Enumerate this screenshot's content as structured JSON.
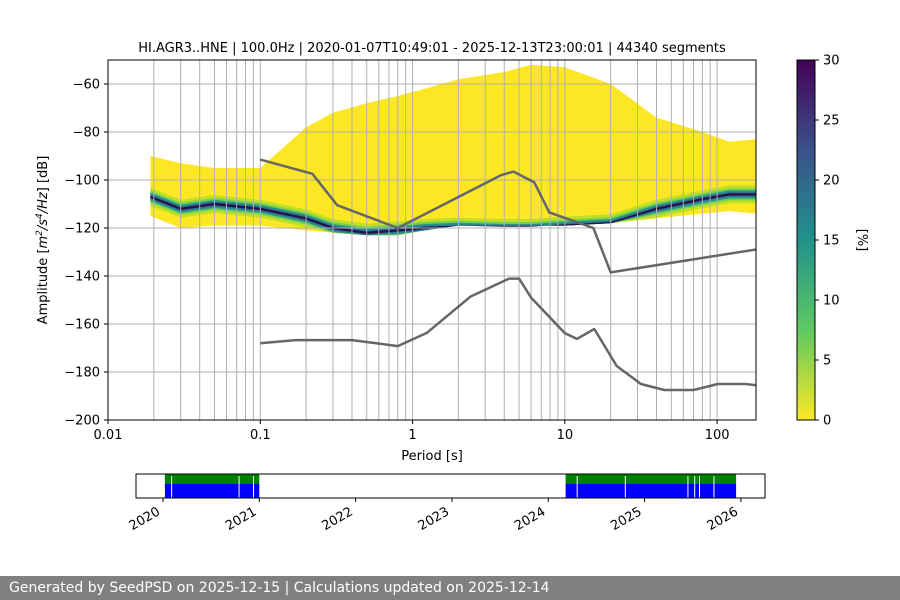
{
  "chart_data": [
    {
      "type": "heatmap",
      "title": "HI.AGR3..HNE | 100.0Hz | 2020-01-07T10:49:01 - 2025-12-13T23:00:01 | 44340 segments",
      "xlabel": "Period [s]",
      "ylabel_prefix": "Amplitude [",
      "ylabel_unit_m": "m",
      "ylabel_unit_exp1": "2",
      "ylabel_unit_mid": "/s",
      "ylabel_unit_exp2": "4",
      "ylabel_unit_end": "/Hz",
      "ylabel_suffix": "] [dB]",
      "x_scale": "log",
      "xlim": [
        0.01,
        180
      ],
      "ylim": [
        -200,
        -50
      ],
      "x_ticks": [
        0.01,
        0.1,
        1,
        10,
        100
      ],
      "x_tick_labels": [
        "0.01",
        "0.1",
        "1",
        "10",
        "100"
      ],
      "y_ticks": [
        -200,
        -180,
        -160,
        -140,
        -120,
        -100,
        -80,
        -60
      ],
      "y_tick_labels": [
        "−200",
        "−180",
        "−160",
        "−140",
        "−120",
        "−100",
        "−80",
        "−60"
      ],
      "grid_periods": [
        0.02,
        0.03,
        0.04,
        0.05,
        0.06,
        0.07,
        0.08,
        0.09,
        0.1,
        0.2,
        0.3,
        0.4,
        0.5,
        0.6,
        0.7,
        0.8,
        0.9,
        1,
        2,
        3,
        4,
        5,
        6,
        7,
        8,
        9,
        10,
        20,
        30,
        40,
        50,
        60,
        70,
        80,
        90,
        100
      ],
      "grid": true,
      "density_range": {
        "x": [
          0.019,
          0.03,
          0.05,
          0.1,
          0.2,
          0.3,
          0.5,
          0.8,
          1.2,
          2,
          4,
          6,
          10,
          20,
          40,
          80,
          120,
          180
        ],
        "upper": [
          -90,
          -93,
          -95,
          -95,
          -78,
          -72,
          -68,
          -65,
          -62,
          -58,
          -55,
          -52,
          -53,
          -60,
          -74,
          -80,
          -84,
          -83
        ],
        "lower": [
          -115,
          -120,
          -119,
          -119,
          -121,
          -122,
          -123,
          -123,
          -121,
          -119,
          -119,
          -119,
          -119,
          -118,
          -116,
          -114,
          -113,
          -114
        ],
        "mode": [
          -107,
          -112,
          -110,
          -112,
          -116,
          -120,
          -122,
          -121,
          -120,
          -119.5,
          -120,
          -120,
          -119,
          -118,
          -112,
          -108,
          -106,
          -106
        ]
      },
      "noise_models": [
        {
          "x": [
            0.1,
            0.22,
            0.32,
            0.8,
            3.8,
            4.6,
            6.3,
            7.9,
            15.4,
            20,
            354.8
          ],
          "y": [
            -91.5,
            -97.4,
            -110.5,
            -120,
            -98,
            -96.5,
            -101,
            -113.5,
            -120,
            -138.5,
            -126
          ]
        },
        {
          "x": [
            0.1,
            0.17,
            0.4,
            0.8,
            1.24,
            2.4,
            4.3,
            5,
            6,
            10,
            12,
            15.6,
            21.9,
            31.6,
            45,
            70,
            101,
            154,
            328
          ],
          "y": [
            -168,
            -166.7,
            -166.7,
            -169.2,
            -163.7,
            -148.6,
            -141.1,
            -141.1,
            -149,
            -163.8,
            -166.2,
            -162.1,
            -177.5,
            -185,
            -187.5,
            -187.5,
            -185,
            -185,
            -187.5
          ]
        }
      ],
      "colorbar": {
        "label": "[%]",
        "range": [
          0,
          30
        ],
        "ticks": [
          0,
          5,
          10,
          15,
          20,
          25,
          30
        ],
        "tick_labels": [
          "0",
          "5",
          "10",
          "15",
          "20",
          "25",
          "30"
        ],
        "colors": [
          "#fde725",
          "#5ec962",
          "#21918c",
          "#3b528b",
          "#440154"
        ]
      },
      "band_colors": {
        "yellow": "#fde725",
        "light_green": "#bddf26",
        "green": "#6ece58",
        "teal": "#21918c",
        "blue": "#2c728e",
        "navy": "#3b528b",
        "dark": "#2a0a4a"
      },
      "line_color": "#666666"
    },
    {
      "type": "timeline",
      "x_ticks": [
        2020,
        2021,
        2022,
        2023,
        2024,
        2025,
        2026
      ],
      "x_tick_labels": [
        "2020",
        "2021",
        "2022",
        "2023",
        "2024",
        "2025",
        "2026"
      ],
      "xlim": [
        2019.72,
        2026.25
      ],
      "coverage": [
        {
          "start": 2020.02,
          "end": 2021.0
        },
        {
          "start": 2024.18,
          "end": 2025.95
        }
      ],
      "gaps": [
        2020.09,
        2020.79,
        2020.94,
        2024.3,
        2024.8,
        2025.45,
        2025.52,
        2025.57,
        2025.72
      ],
      "colors": {
        "data": "#0000ff",
        "processed": "#008000",
        "gap": "#ffffff"
      }
    }
  ],
  "footer": {
    "text": "Generated by SeedPSD on 2025-12-15 | Calculations updated on 2025-12-14"
  }
}
